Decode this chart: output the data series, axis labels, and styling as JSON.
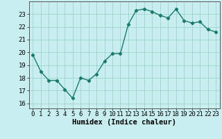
{
  "x": [
    0,
    1,
    2,
    3,
    4,
    5,
    6,
    7,
    8,
    9,
    10,
    11,
    12,
    13,
    14,
    15,
    16,
    17,
    18,
    19,
    20,
    21,
    22,
    23
  ],
  "y": [
    19.8,
    18.5,
    17.8,
    17.8,
    17.1,
    16.4,
    18.0,
    17.8,
    18.3,
    19.3,
    19.9,
    19.9,
    22.2,
    23.3,
    23.4,
    23.2,
    22.9,
    22.7,
    23.4,
    22.5,
    22.3,
    22.4,
    21.8,
    21.6
  ],
  "line_color": "#1a7a6e",
  "marker": "D",
  "marker_size": 2.2,
  "background_color": "#c8eef0",
  "grid_color": "#9ed4cc",
  "xlabel": "Humidex (Indice chaleur)",
  "xlabel_fontsize": 7.5,
  "xlim": [
    -0.5,
    23.5
  ],
  "ylim": [
    15.6,
    24.0
  ],
  "yticks": [
    16,
    17,
    18,
    19,
    20,
    21,
    22,
    23
  ],
  "xticks": [
    0,
    1,
    2,
    3,
    4,
    5,
    6,
    7,
    8,
    9,
    10,
    11,
    12,
    13,
    14,
    15,
    16,
    17,
    18,
    19,
    20,
    21,
    22,
    23
  ],
  "tick_fontsize": 6.5,
  "linewidth": 1.0
}
